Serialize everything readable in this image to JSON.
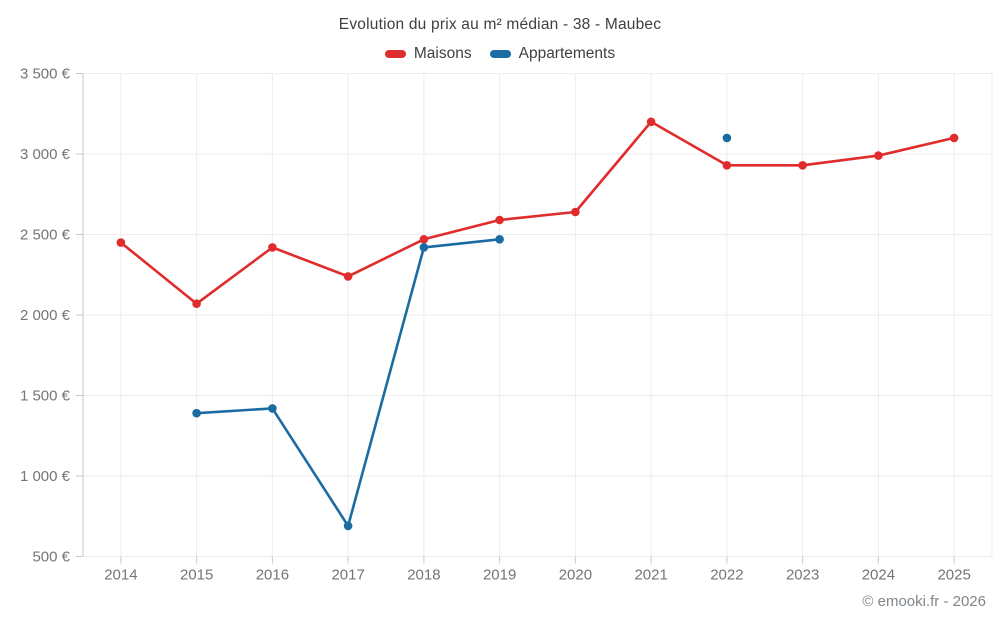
{
  "page": {
    "title": "Evolution du prix au m² médian - 38 - Maubec",
    "copyright": "© emooki.fr - 2026"
  },
  "legend": [
    {
      "label": "Maisons",
      "color": "#e02c2c"
    },
    {
      "label": "Appartements",
      "color": "#1a6ca3"
    }
  ],
  "chart_data": {
    "type": "line",
    "title": "Evolution du prix au m² médian - 38 - Maubec",
    "x": [
      "2014",
      "2015",
      "2016",
      "2017",
      "2018",
      "2019",
      "2020",
      "2021",
      "2022",
      "2023",
      "2024",
      "2025"
    ],
    "series": [
      {
        "name": "Maisons",
        "color": "#e02c2c",
        "values": [
          2450,
          2070,
          2420,
          2240,
          2470,
          2590,
          2640,
          3200,
          2930,
          2930,
          2990,
          3100
        ]
      },
      {
        "name": "Appartements",
        "color": "#1a6ca3",
        "values": [
          null,
          1390,
          1420,
          690,
          2420,
          2470,
          null,
          null,
          3100,
          null,
          null,
          null
        ]
      }
    ],
    "ylabel": "",
    "xlabel": "",
    "ylim": [
      500,
      3500
    ],
    "ytick_step": 500,
    "ytick_suffix": " €",
    "grid": true,
    "legend_position": "top",
    "grid_color": "#ededed",
    "axis_color": "#c9c9c9",
    "tick_label_color": "#757575"
  }
}
